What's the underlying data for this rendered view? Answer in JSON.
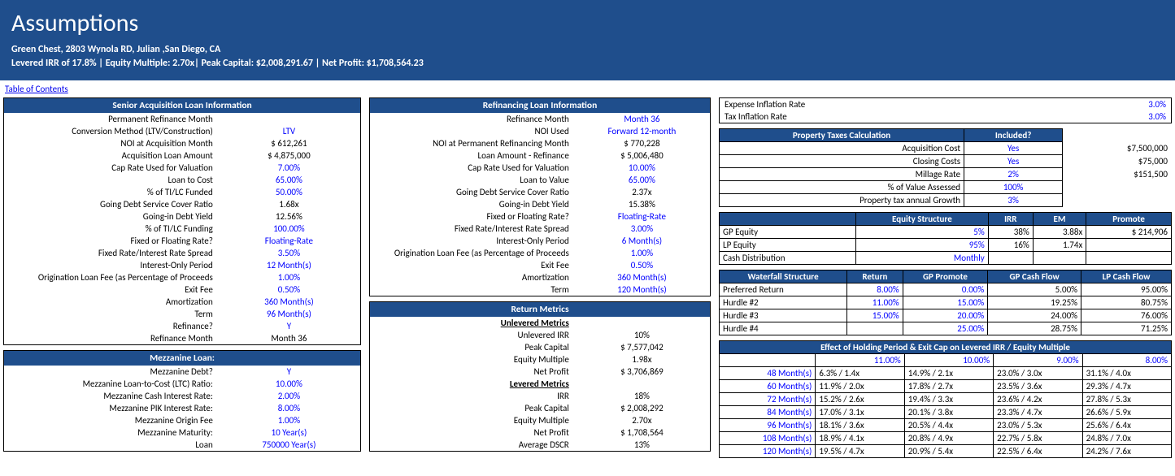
{
  "banner": {
    "title": "Assumptions",
    "line1": "Green Chest, 2803 Wynola RD, Julian ,San Diego, CA",
    "line2": "Levered IRR of 17.8% | Equity Multiple: 2.70x| Peak Capital: $2,008,291.67 | Net Profit: $1,708,564.23"
  },
  "toc": "Table of Contents",
  "senior": {
    "hdr": "Senior Acquisition Loan Information",
    "rows": [
      {
        "l": "Permanent Refinance Month",
        "v": "",
        "b": false
      },
      {
        "l": "Conversion Method (LTV/Construction)",
        "v": "LTV",
        "b": true
      },
      {
        "l": "NOI at Acquisition Month",
        "v": "$ 612,261",
        "b": false
      },
      {
        "l": "Acquisition Loan Amount",
        "v": "$ 4,875,000",
        "b": false
      },
      {
        "l": "Cap Rate Used for Valuation",
        "v": "7.00%",
        "b": true
      },
      {
        "l": "Loan to Cost",
        "v": "65.00%",
        "b": true
      },
      {
        "l": "% of TI/LC Funded",
        "v": "50.00%",
        "b": true
      },
      {
        "l": "Going Debt Service Cover Ratio",
        "v": "1.68x",
        "b": false
      },
      {
        "l": "Going-in Debt Yield",
        "v": "12.56%",
        "b": false
      },
      {
        "l": "% of TI/LC Funding",
        "v": "100.00%",
        "b": true
      },
      {
        "l": "Fixed or Floating Rate?",
        "v": "Floating-Rate",
        "b": true
      },
      {
        "l": "Fixed Rate/Interest Rate Spread",
        "v": "3.50%",
        "b": true
      },
      {
        "l": "Interest-Only Period",
        "v": "12 Month(s)",
        "b": true
      },
      {
        "l": "Origination Loan Fee (as Percentage of Proceeds",
        "v": "1.00%",
        "b": true
      },
      {
        "l": "Exit Fee",
        "v": "0.50%",
        "b": true
      },
      {
        "l": "Amortization",
        "v": "360 Month(s)",
        "b": true
      },
      {
        "l": "Term",
        "v": "96 Month(s)",
        "b": true
      },
      {
        "l": "Refinance?",
        "v": "Y",
        "b": true
      },
      {
        "l": "Refinance Month",
        "v": "Month 36",
        "b": false
      }
    ]
  },
  "mezz": {
    "hdr": "Mezzanine Loan:",
    "rows": [
      {
        "l": "Mezzanine Debt?",
        "v": "Y",
        "b": true
      },
      {
        "l": "Mezzanine Loan-to-Cost (LTC) Ratio:",
        "v": "10.00%",
        "b": true
      },
      {
        "l": "Mezzanine Cash Interest Rate:",
        "v": "2.00%",
        "b": true
      },
      {
        "l": "Mezzanine PIK Interest Rate:",
        "v": "8.00%",
        "b": true
      },
      {
        "l": "Mezzanine Origin Fee",
        "v": "1.00%",
        "b": true
      },
      {
        "l": "Mezzanine Maturity:",
        "v": "10 Year(s)",
        "b": true
      },
      {
        "l": "Loan",
        "v": "750000 Year(s)",
        "b": true
      }
    ]
  },
  "refi": {
    "hdr": "Refinancing Loan Information",
    "rows": [
      {
        "l": "Refinance Month",
        "v": "Month 36",
        "b": true
      },
      {
        "l": "NOI Used",
        "v": "Forward 12-month",
        "b": true
      },
      {
        "l": "NOI at Permanent Refinancing Month",
        "v": "$ 770,228",
        "b": false
      },
      {
        "l": "Loan Amount - Refinance",
        "v": "$ 5,006,480",
        "b": false
      },
      {
        "l": "Cap Rate Used for Valuation",
        "v": "10.00%",
        "b": true
      },
      {
        "l": "Loan to Value",
        "v": "65.00%",
        "b": true
      },
      {
        "l": "Going Debt Service Cover Ratio",
        "v": "2.37x",
        "b": false
      },
      {
        "l": "Going-in Debt Yield",
        "v": "15.38%",
        "b": false
      },
      {
        "l": "Fixed or Floating Rate?",
        "v": "Floating-Rate",
        "b": true
      },
      {
        "l": "Fixed Rate/Interest Rate Spread",
        "v": "3.00%",
        "b": true
      },
      {
        "l": "Interest-Only Period",
        "v": "6 Month(s)",
        "b": true
      },
      {
        "l": "Origination Loan Fee (as Percentage of Proceeds",
        "v": "1.00%",
        "b": true
      },
      {
        "l": "Exit Fee",
        "v": "0.50%",
        "b": true
      },
      {
        "l": "Amortization",
        "v": "360 Month(s)",
        "b": true
      },
      {
        "l": "Term",
        "v": "120 Month(s)",
        "b": true
      }
    ]
  },
  "ret": {
    "hdr": "Return Metrics",
    "rows": [
      {
        "l": "Unlevered Metrics",
        "v": "",
        "sec": true
      },
      {
        "l": "Unlevered IRR",
        "v": "10%"
      },
      {
        "l": "Peak Capital",
        "v": "$ 7,577,042"
      },
      {
        "l": "Equity Multiple",
        "v": "1.98x"
      },
      {
        "l": "Net Profit",
        "v": "$ 3,706,869"
      },
      {
        "l": "Levered Metrics",
        "v": "",
        "sec": true
      },
      {
        "l": "IRR",
        "v": "18%"
      },
      {
        "l": "Peak Capital",
        "v": "$ 2,008,292"
      },
      {
        "l": "Equity Multiple",
        "v": "2.70x"
      },
      {
        "l": "Net Profit",
        "v": "$ 1,708,564"
      },
      {
        "l": "Average DSCR",
        "v": "13%"
      }
    ]
  },
  "infl": {
    "rows": [
      {
        "l": "Expense Inflation Rate",
        "v": "3.0%"
      },
      {
        "l": "Tax Inflation Rate",
        "v": "3.0%"
      }
    ]
  },
  "tax": {
    "hdr1": "Property Taxes Calculation",
    "hdr2": "Included?",
    "rows": [
      {
        "l": "Acquisition Cost",
        "v": "Yes",
        "r": "$7,500,000"
      },
      {
        "l": "Closing Costs",
        "v": "Yes",
        "r": "$75,000"
      },
      {
        "l": "Millage Rate",
        "v": "2%",
        "r": "$151,500"
      },
      {
        "l": "% of Value Assessed",
        "v": "100%",
        "r": ""
      },
      {
        "l": "Property tax annual Growth",
        "v": "3%",
        "r": ""
      }
    ]
  },
  "eq": {
    "cols": [
      "",
      "Equity Structure",
      "IRR",
      "EM",
      "Promote"
    ],
    "rows": [
      {
        "l": "GP Equity",
        "c": [
          "5%",
          "38%",
          "3.88x",
          "$ 214,906"
        ]
      },
      {
        "l": "LP Equity",
        "c": [
          "95%",
          "16%",
          "1.74x",
          ""
        ]
      },
      {
        "l": "Cash Distribution",
        "c": [
          "Monthly",
          "",
          "",
          ""
        ]
      }
    ]
  },
  "wf": {
    "cols": [
      "Waterfall Structure",
      "Return",
      "GP Promote",
      "GP Cash Flow",
      "LP Cash Flow"
    ],
    "rows": [
      {
        "l": "Preferred Return",
        "c": [
          "8.00%",
          "0.00%",
          "5.00%",
          "95.00%"
        ]
      },
      {
        "l": "Hurdle #2",
        "c": [
          "11.00%",
          "15.00%",
          "19.25%",
          "80.75%"
        ]
      },
      {
        "l": "Hurdle #3",
        "c": [
          "15.00%",
          "20.00%",
          "24.00%",
          "76.00%"
        ]
      },
      {
        "l": "Hurdle #4",
        "c": [
          "",
          "25.00%",
          "28.75%",
          "71.25%"
        ]
      }
    ]
  },
  "hold": {
    "hdr": "Effect of Holding Period & Exit Cap on Levered IRR / Equity Multiple",
    "topcols": [
      "",
      "11.00%",
      "10.00%",
      "9.00%",
      "8.00%"
    ],
    "rows": [
      {
        "l": "48 Month(s)",
        "c": [
          "6.3% / 1.4x",
          "14.9% / 2.1x",
          "23.0% / 3.0x",
          "31.1% / 4.0x"
        ]
      },
      {
        "l": "60 Month(s)",
        "c": [
          "11.9% / 2.0x",
          "17.8% / 2.7x",
          "23.5% / 3.6x",
          "29.3% / 4.7x"
        ]
      },
      {
        "l": "72 Month(s)",
        "c": [
          "15.2% / 2.6x",
          "19.4% / 3.3x",
          "23.6% / 4.2x",
          "27.8% / 5.3x"
        ]
      },
      {
        "l": "84 Month(s)",
        "c": [
          "17.0% / 3.1x",
          "20.1% / 3.8x",
          "23.3% / 4.7x",
          "26.6% / 5.9x"
        ]
      },
      {
        "l": "96 Month(s)",
        "c": [
          "18.1% / 3.6x",
          "20.5% / 4.4x",
          "23.0% / 5.3x",
          "25.6% / 6.4x"
        ]
      },
      {
        "l": "108 Month(s)",
        "c": [
          "18.9% / 4.1x",
          "20.8% / 4.9x",
          "22.7% / 5.8x",
          "24.8% / 7.0x"
        ]
      },
      {
        "l": "120 Month(s)",
        "c": [
          "19.5% / 4.7x",
          "20.9% / 5.4x",
          "22.5% / 6.4x",
          "24.2% / 7.6x"
        ]
      }
    ]
  }
}
